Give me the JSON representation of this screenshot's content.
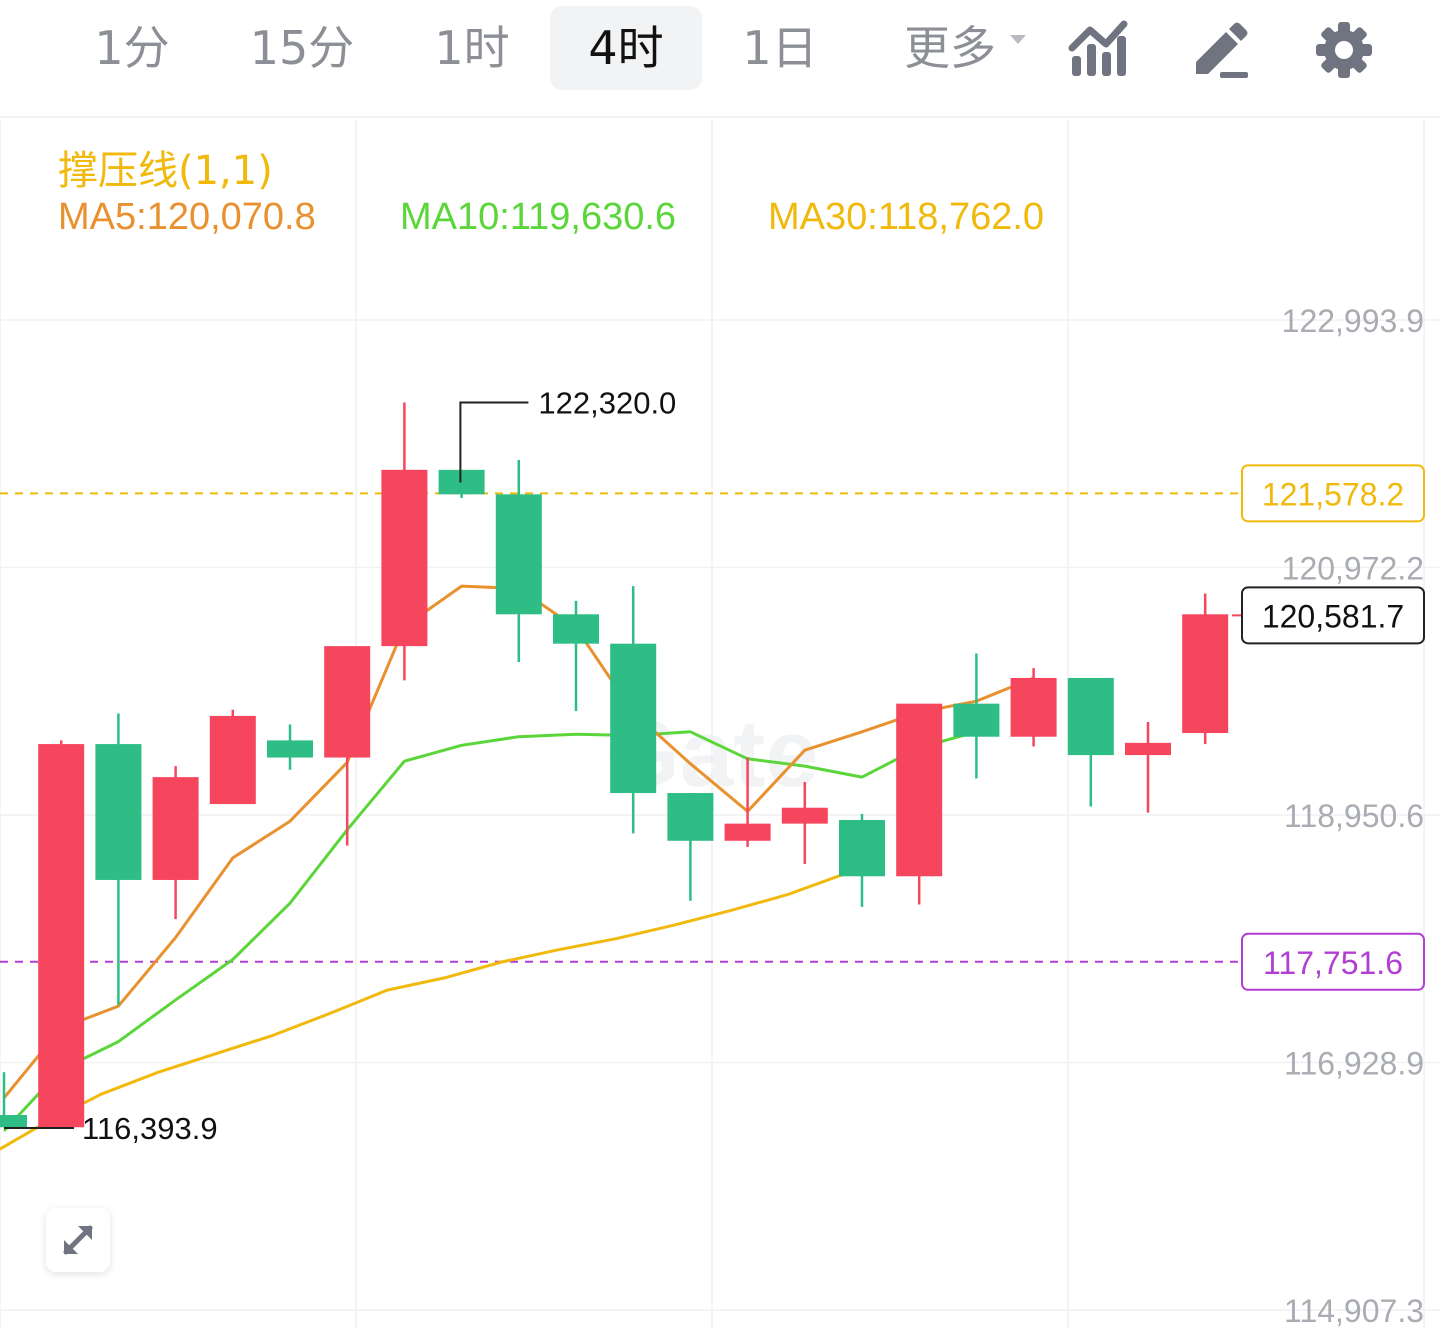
{
  "timeframes": [
    {
      "label": "1分",
      "active": false
    },
    {
      "label": "15分",
      "active": false
    },
    {
      "label": "1时",
      "active": false
    },
    {
      "label": "4时",
      "active": true
    },
    {
      "label": "1日",
      "active": false
    }
  ],
  "more_label": "更多",
  "tools": [
    {
      "icon": "indicator-chart-icon"
    },
    {
      "icon": "draw-pencil-icon"
    },
    {
      "icon": "settings-gear-icon"
    }
  ],
  "indicator_title": "撑压线(1,1)",
  "ma_legend": {
    "ma5": "MA5:120,070.8",
    "ma10": "MA10:119,630.6",
    "ma30": "MA30:118,762.0"
  },
  "colors": {
    "up": "#f6465d",
    "down": "#2ebd85",
    "ma5": "#e8912e",
    "ma10": "#5bd63a",
    "ma30": "#f0b90b",
    "resistance": "#f0b90b",
    "support": "#b13fd1",
    "axis_text": "#a9acb2",
    "grid": "#f0f1f3"
  },
  "chart_data": {
    "type": "candlestick",
    "title": "",
    "y_axis_ticks": [
      122993.9,
      120972.2,
      118950.6,
      116928.9,
      114907.3
    ],
    "y_axis_tick_labels": [
      "122,993.9",
      "120,972.2",
      "118,950.6",
      "116,928.9",
      "114,907.3"
    ],
    "ylim": [
      114907.3,
      122993.9
    ],
    "grid": true,
    "candles": [
      {
        "open": 116500,
        "high": 116850,
        "low": 116400,
        "close": 116400
      },
      {
        "open": 116400,
        "high": 119560,
        "low": 116390,
        "close": 119530
      },
      {
        "open": 119530,
        "high": 119780,
        "low": 117400,
        "close": 118420
      },
      {
        "open": 118420,
        "high": 119350,
        "low": 118100,
        "close": 119260
      },
      {
        "open": 119040,
        "high": 119810,
        "low": 119090,
        "close": 119760
      },
      {
        "open": 119560,
        "high": 119690,
        "low": 119320,
        "close": 119420
      },
      {
        "open": 119420,
        "high": 120330,
        "low": 118700,
        "close": 120330
      },
      {
        "open": 120330,
        "high": 122320,
        "low": 120050,
        "close": 121770
      },
      {
        "open": 121770,
        "high": 121770,
        "low": 121540,
        "close": 121570
      },
      {
        "open": 121570,
        "high": 121850,
        "low": 120200,
        "close": 120590
      },
      {
        "open": 120590,
        "high": 120700,
        "low": 119800,
        "close": 120350
      },
      {
        "open": 120350,
        "high": 120820,
        "low": 118800,
        "close": 119130
      },
      {
        "open": 119130,
        "high": 119130,
        "low": 118250,
        "close": 118740
      },
      {
        "open": 118740,
        "high": 119420,
        "low": 118690,
        "close": 118880
      },
      {
        "open": 118880,
        "high": 119220,
        "low": 118550,
        "close": 119010
      },
      {
        "open": 118910,
        "high": 118960,
        "low": 118200,
        "close": 118450
      },
      {
        "open": 118450,
        "high": 119840,
        "low": 118220,
        "close": 119860
      },
      {
        "open": 119860,
        "high": 120270,
        "low": 119250,
        "close": 119590
      },
      {
        "open": 119590,
        "high": 120150,
        "low": 119510,
        "close": 120070
      },
      {
        "open": 120070,
        "high": 120070,
        "low": 119020,
        "close": 119440
      },
      {
        "open": 119440,
        "high": 119710,
        "low": 118970,
        "close": 119540
      },
      {
        "open": 119620,
        "high": 120760,
        "low": 119530,
        "close": 120590
      }
    ],
    "ma5": [
      116640,
      117210,
      117390,
      117950,
      118600,
      118900,
      119380,
      120490,
      120820,
      120800,
      120480,
      119790,
      119370,
      118980,
      119480,
      119630,
      119790,
      119880,
      120070
    ],
    "ma10": [
      116370,
      116870,
      117100,
      117440,
      117770,
      118230,
      118830,
      119390,
      119520,
      119590,
      119610,
      119600,
      119630,
      119410,
      119350,
      119260,
      119500,
      119630
    ],
    "ma30": [
      115230,
      115430,
      115620,
      115850,
      116160,
      116430,
      116670,
      116850,
      117000,
      117150,
      117330,
      117520,
      117620,
      117750,
      117850,
      117940,
      118050,
      118170,
      118300,
      118470
    ],
    "resistance_line": {
      "value": 121578.2,
      "label": "121,578.2"
    },
    "support_line": {
      "value": 117751.6,
      "label": "117,751.6"
    },
    "last_price": {
      "value": 120581.7,
      "label": "120,581.7"
    },
    "max_annotation": {
      "value": 122320.0,
      "label": "122,320.0"
    },
    "min_annotation": {
      "value": 116393.9,
      "label": "116,393.9"
    },
    "watermark": "Gate"
  }
}
